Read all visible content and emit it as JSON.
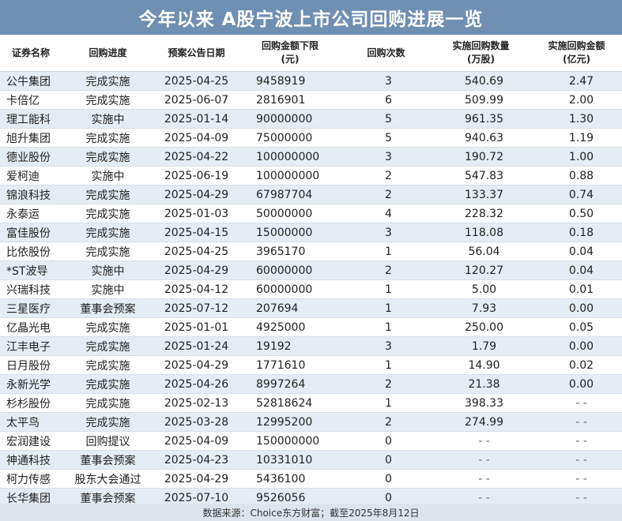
{
  "title": "今年以来 A股宁波上市公司回购进展一览",
  "headers": {
    "name": "证券名称",
    "progress": "回购进度",
    "date": "预案公告日期",
    "amount_line1": "回购金额下限",
    "amount_line2": "(元)",
    "count": "回购次数",
    "qty_line1": "实施回购数量",
    "qty_line2": "(万股)",
    "val_line1": "实施回购金额",
    "val_line2": "(亿元)"
  },
  "rows": [
    {
      "name": "公牛集团",
      "progress": "完成实施",
      "date": "2025-04-25",
      "amount": "9458919",
      "count": "3",
      "qty": "540.69",
      "val": "2.47"
    },
    {
      "name": "卡倍亿",
      "progress": "完成实施",
      "date": "2025-06-07",
      "amount": "2816901",
      "count": "6",
      "qty": "509.99",
      "val": "2.00"
    },
    {
      "name": "理工能科",
      "progress": "实施中",
      "date": "2025-01-14",
      "amount": "90000000",
      "count": "5",
      "qty": "961.35",
      "val": "1.30"
    },
    {
      "name": "旭升集团",
      "progress": "完成实施",
      "date": "2025-04-09",
      "amount": "75000000",
      "count": "5",
      "qty": "940.63",
      "val": "1.19"
    },
    {
      "name": "德业股份",
      "progress": "完成实施",
      "date": "2025-04-22",
      "amount": "100000000",
      "count": "3",
      "qty": "190.72",
      "val": "1.00"
    },
    {
      "name": "爱柯迪",
      "progress": "实施中",
      "date": "2025-06-19",
      "amount": "100000000",
      "count": "2",
      "qty": "547.83",
      "val": "0.88"
    },
    {
      "name": "锦浪科技",
      "progress": "完成实施",
      "date": "2025-04-29",
      "amount": "67987704",
      "count": "2",
      "qty": "133.37",
      "val": "0.74"
    },
    {
      "name": "永泰运",
      "progress": "完成实施",
      "date": "2025-01-03",
      "amount": "50000000",
      "count": "4",
      "qty": "228.32",
      "val": "0.50"
    },
    {
      "name": "富佳股份",
      "progress": "完成实施",
      "date": "2025-04-15",
      "amount": "15000000",
      "count": "3",
      "qty": "118.08",
      "val": "0.18"
    },
    {
      "name": "比依股份",
      "progress": "完成实施",
      "date": "2025-04-25",
      "amount": "3965170",
      "count": "1",
      "qty": "56.04",
      "val": "0.04"
    },
    {
      "name": "*ST波导",
      "progress": "实施中",
      "date": "2025-04-29",
      "amount": "60000000",
      "count": "2",
      "qty": "120.27",
      "val": "0.04"
    },
    {
      "name": "兴瑞科技",
      "progress": "实施中",
      "date": "2025-04-12",
      "amount": "60000000",
      "count": "1",
      "qty": "5.00",
      "val": "0.01"
    },
    {
      "name": "三星医疗",
      "progress": "董事会预案",
      "date": "2025-07-12",
      "amount": "207694",
      "count": "1",
      "qty": "7.93",
      "val": "0.00"
    },
    {
      "name": "亿晶光电",
      "progress": "完成实施",
      "date": "2025-01-01",
      "amount": "4925000",
      "count": "1",
      "qty": "250.00",
      "val": "0.05"
    },
    {
      "name": "江丰电子",
      "progress": "完成实施",
      "date": "2025-01-24",
      "amount": "19192",
      "count": "3",
      "qty": "1.79",
      "val": "0.00"
    },
    {
      "name": "日月股份",
      "progress": "完成实施",
      "date": "2025-04-29",
      "amount": "1771610",
      "count": "1",
      "qty": "14.90",
      "val": "0.02"
    },
    {
      "name": "永新光学",
      "progress": "完成实施",
      "date": "2025-04-26",
      "amount": "8997264",
      "count": "2",
      "qty": "21.38",
      "val": "0.00"
    },
    {
      "name": "杉杉股份",
      "progress": "完成实施",
      "date": "2025-02-13",
      "amount": "52818624",
      "count": "1",
      "qty": "398.33",
      "val": "- -"
    },
    {
      "name": "太平鸟",
      "progress": "完成实施",
      "date": "2025-03-28",
      "amount": "12995200",
      "count": "2",
      "qty": "274.99",
      "val": "- -"
    },
    {
      "name": "宏润建设",
      "progress": "回购提议",
      "date": "2025-04-09",
      "amount": "150000000",
      "count": "0",
      "qty": "- -",
      "val": "- -"
    },
    {
      "name": "神通科技",
      "progress": "董事会预案",
      "date": "2025-04-23",
      "amount": "10331010",
      "count": "0",
      "qty": "- -",
      "val": "- -"
    },
    {
      "name": "柯力传感",
      "progress": "股东大会通过",
      "date": "2025-04-29",
      "amount": "5436100",
      "count": "0",
      "qty": "- -",
      "val": "- -"
    },
    {
      "name": "长华集团",
      "progress": "董事会预案",
      "date": "2025-07-10",
      "amount": "9526056",
      "count": "0",
      "qty": "- -",
      "val": "- -"
    }
  ],
  "footer": "数据来源：Choice东方财富；截至2025年8月12日"
}
